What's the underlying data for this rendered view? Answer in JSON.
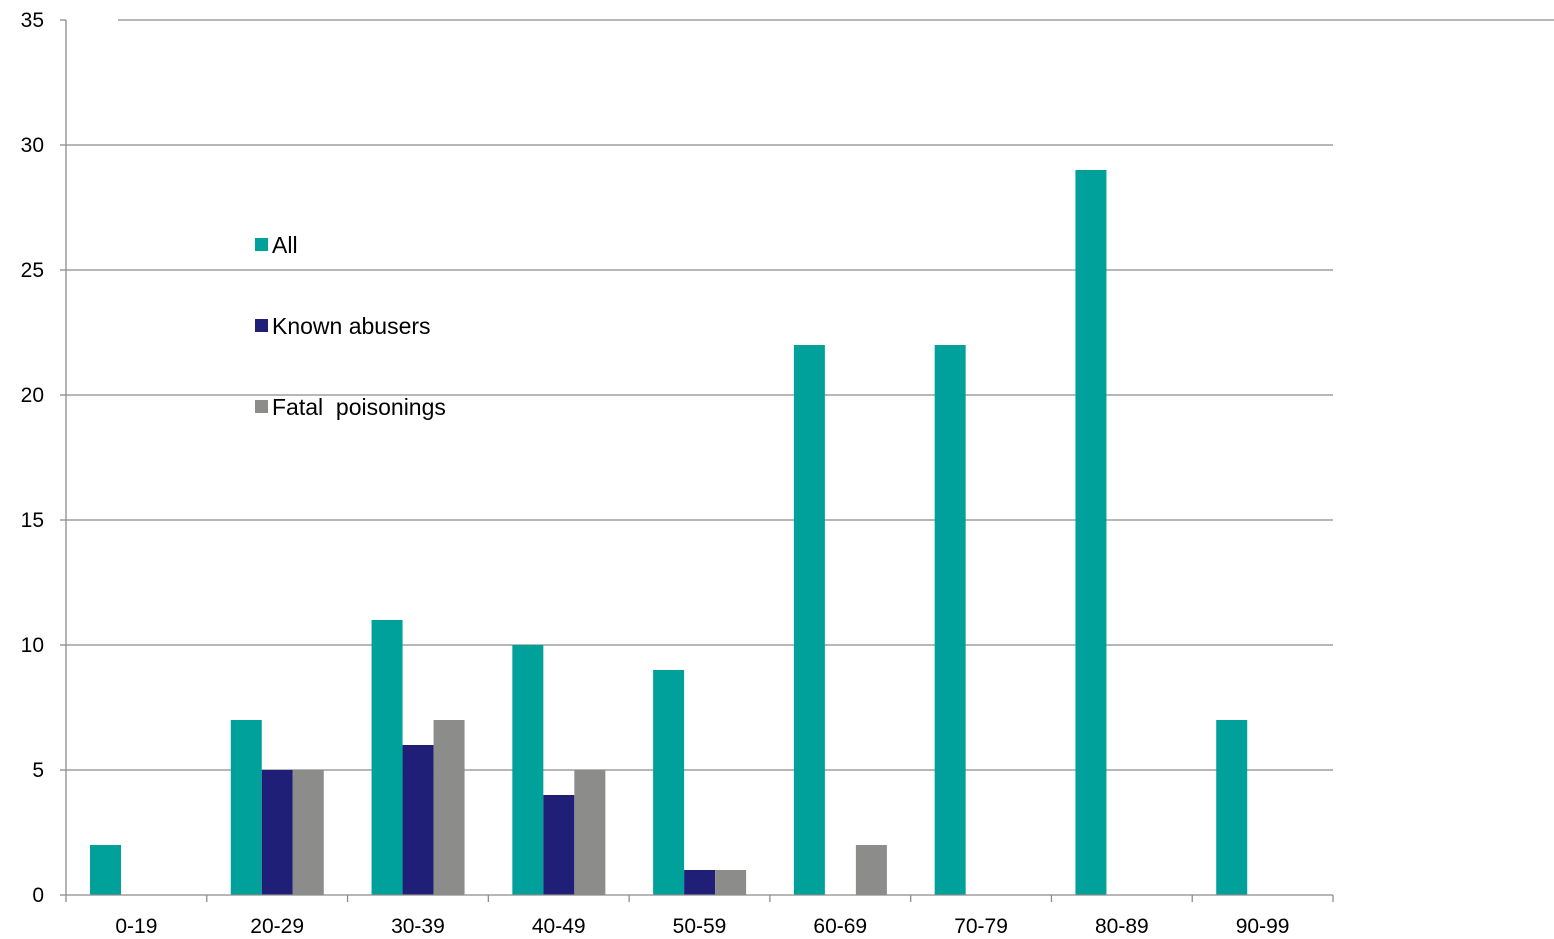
{
  "chart_data": {
    "type": "bar",
    "title": "",
    "xlabel": "",
    "ylabel": "",
    "categories": [
      "0-19",
      "20-29",
      "30-39",
      "40-49",
      "50-59",
      "60-69",
      "70-79",
      "80-89",
      "90-99"
    ],
    "series": [
      {
        "name": "All",
        "color": "#00a19a",
        "values": [
          2,
          7,
          11,
          10,
          9,
          22,
          22,
          29,
          7
        ]
      },
      {
        "name": "Known abusers",
        "color": "#1f1f78",
        "values": [
          0,
          5,
          6,
          4,
          1,
          0,
          0,
          0,
          0
        ]
      },
      {
        "name": "Fatal  poisonings",
        "color": "#8c8c8a",
        "values": [
          0,
          5,
          7,
          5,
          1,
          2,
          0,
          0,
          0
        ]
      }
    ],
    "ylim": [
      0,
      35
    ],
    "yticks": [
      0,
      5,
      10,
      15,
      20,
      25,
      30,
      35
    ],
    "grid": true,
    "legend_position": "top-left"
  }
}
